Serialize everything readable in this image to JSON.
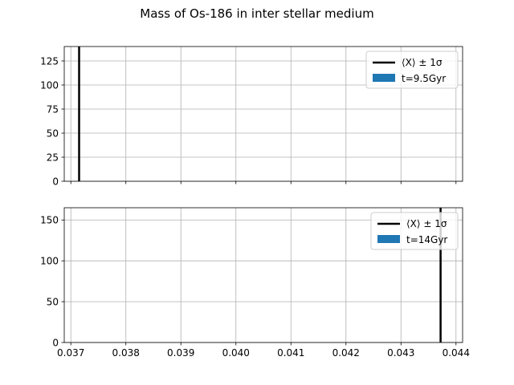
{
  "figure_title": "Mass of Os-186 in inter stellar medium",
  "chart_data": [
    {
      "type": "histogram",
      "legend_line_label": "⟨X⟩ ± 1σ",
      "legend_patch_label": "t=9.5Gyr",
      "legend_placement": "top-right",
      "line_x": 0.03715,
      "line_color": "#000000",
      "patch_color": "#1f77b4",
      "xlim": [
        0.03688,
        0.04412
      ],
      "ylim": [
        0,
        140
      ],
      "xticks": [
        0.037,
        0.038,
        0.039,
        0.04,
        0.041,
        0.042,
        0.043,
        0.044
      ],
      "xtick_labels_shown": false,
      "yticks": [
        0,
        25,
        50,
        75,
        100,
        125
      ],
      "ytick_labels": [
        "0",
        "25",
        "50",
        "75",
        "100",
        "125"
      ],
      "grid": true
    },
    {
      "type": "histogram",
      "legend_line_label": "⟨X⟩ ± 1σ",
      "legend_patch_label": "t=14Gyr",
      "legend_placement": "top-right",
      "line_x": 0.04372,
      "line_color": "#000000",
      "patch_color": "#1f77b4",
      "xlim": [
        0.03688,
        0.04412
      ],
      "ylim": [
        0,
        165
      ],
      "xticks": [
        0.037,
        0.038,
        0.039,
        0.04,
        0.041,
        0.042,
        0.043,
        0.044
      ],
      "xtick_labels": [
        "0.037",
        "0.038",
        "0.039",
        "0.040",
        "0.041",
        "0.042",
        "0.043",
        "0.044"
      ],
      "xtick_labels_shown": true,
      "yticks": [
        0,
        50,
        100,
        150
      ],
      "ytick_labels": [
        "0",
        "50",
        "100",
        "150"
      ],
      "grid": true
    }
  ]
}
